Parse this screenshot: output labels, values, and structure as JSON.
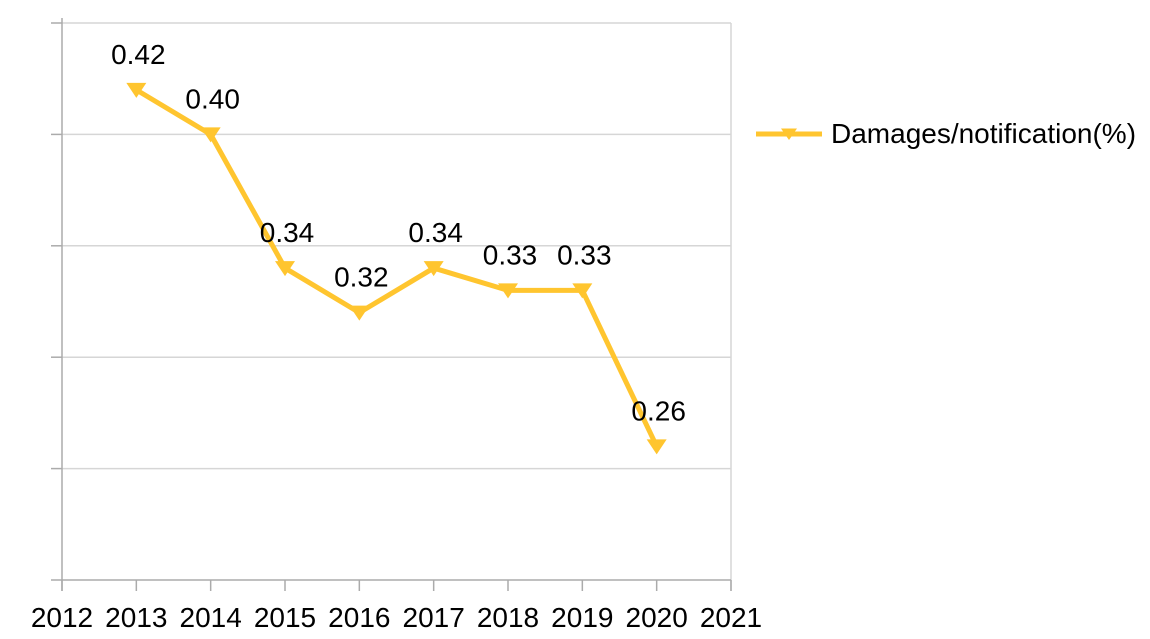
{
  "chart_data": {
    "type": "line",
    "title": "",
    "x": [
      2013,
      2014,
      2015,
      2016,
      2017,
      2018,
      2019,
      2020
    ],
    "series": [
      {
        "name": "Damages/notification(%)",
        "values": [
          0.42,
          0.4,
          0.34,
          0.32,
          0.34,
          0.33,
          0.33,
          0.26
        ],
        "data_labels": [
          "0.42",
          "0.40",
          "0.34",
          "0.32",
          "0.34",
          "0.33",
          "0.33",
          "0.26"
        ],
        "marker": "triangle-down"
      }
    ],
    "x_axis": {
      "range": [
        2012,
        2021
      ],
      "tick_labels": [
        "2012",
        "2013",
        "2014",
        "2015",
        "2016",
        "2017",
        "2018",
        "2019",
        "2020",
        "2021"
      ]
    },
    "y_axis": {
      "range": [
        0.2,
        0.45
      ],
      "gridline_step": 0.05,
      "tick_labels_visible": false
    },
    "legend": {
      "position": "right",
      "label": "Damages/notification(%)"
    },
    "grid": true,
    "colors": {
      "series": "#FFC52F",
      "gridline": "#D6D6D6",
      "axis_line": "#ABABAB",
      "label_text": "#000000"
    }
  }
}
